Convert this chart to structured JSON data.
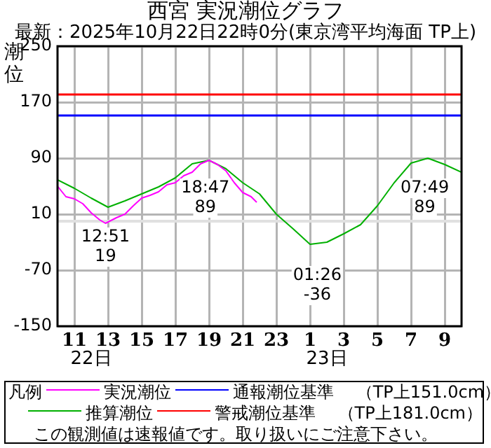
{
  "chart_data": {
    "type": "line",
    "title": "西宮 実況潮位グラフ",
    "subtitle": "最新：2025年10月22日22時0分(東京湾平均海面 TP上)",
    "ylabel": "潮位",
    "legend_title": "凡例",
    "series": [
      {
        "name": "実況潮位",
        "color": "#ff00ff",
        "x": [
          "2025-10-22T10:00",
          "2025-10-22T10:30",
          "2025-10-22T11:00",
          "2025-10-22T11:30",
          "2025-10-22T12:00",
          "2025-10-22T12:30",
          "2025-10-22T12:51",
          "2025-10-22T13:30",
          "2025-10-22T14:00",
          "2025-10-22T14:30",
          "2025-10-22T15:00",
          "2025-10-22T15:30",
          "2025-10-22T16:00",
          "2025-10-22T16:30",
          "2025-10-22T17:00",
          "2025-10-22T17:30",
          "2025-10-22T18:00",
          "2025-10-22T18:30",
          "2025-10-22T19:00",
          "2025-10-22T19:30",
          "2025-10-22T20:00",
          "2025-10-22T20:30",
          "2025-10-22T21:00",
          "2025-10-22T21:30",
          "2025-10-22T21:50"
        ],
        "values": [
          50,
          35,
          32,
          25,
          12,
          2,
          -3,
          5,
          10,
          22,
          33,
          37,
          42,
          52,
          55,
          65,
          70,
          82,
          87,
          81,
          72,
          55,
          41,
          35,
          27
        ]
      },
      {
        "name": "推算潮位",
        "color": "#00b000",
        "x": [
          "2025-10-22T10:00",
          "2025-10-22T11:00",
          "2025-10-22T12:00",
          "2025-10-22T13:00",
          "2025-10-22T14:00",
          "2025-10-22T15:00",
          "2025-10-22T16:00",
          "2025-10-22T17:00",
          "2025-10-22T18:00",
          "2025-10-22T19:00",
          "2025-10-22T20:00",
          "2025-10-22T21:00",
          "2025-10-22T22:00",
          "2025-10-22T23:00",
          "2025-10-23T00:00",
          "2025-10-23T01:00",
          "2025-10-23T02:00",
          "2025-10-23T03:00",
          "2025-10-23T04:00",
          "2025-10-23T05:00",
          "2025-10-23T06:00",
          "2025-10-23T07:00",
          "2025-10-23T08:00",
          "2025-10-23T09:00",
          "2025-10-23T10:00"
        ],
        "values": [
          59,
          47,
          33,
          20,
          29,
          39,
          49,
          62,
          82,
          87,
          75,
          55,
          39,
          10,
          -11,
          -33,
          -30,
          -18,
          -5,
          22,
          55,
          83,
          90,
          81,
          70
        ]
      }
    ],
    "xlim": [
      "2025-10-22T10:00",
      "2025-10-23T10:00"
    ],
    "xticks": [
      {
        "value": "2025-10-22T11:00",
        "label": "11"
      },
      {
        "value": "2025-10-22T13:00",
        "label": "13"
      },
      {
        "value": "2025-10-22T15:00",
        "label": "15"
      },
      {
        "value": "2025-10-22T17:00",
        "label": "17"
      },
      {
        "value": "2025-10-22T19:00",
        "label": "19"
      },
      {
        "value": "2025-10-22T21:00",
        "label": "21"
      },
      {
        "value": "2025-10-22T23:00",
        "label": "23"
      },
      {
        "value": "2025-10-23T01:00",
        "label": "1"
      },
      {
        "value": "2025-10-23T03:00",
        "label": "3"
      },
      {
        "value": "2025-10-23T05:00",
        "label": "5"
      },
      {
        "value": "2025-10-23T07:00",
        "label": "7"
      },
      {
        "value": "2025-10-23T09:00",
        "label": "9"
      }
    ],
    "ylim": [
      -150,
      250
    ],
    "yticks": [
      -150,
      -70,
      10,
      90,
      170,
      250
    ],
    "grid": true,
    "legend": "bottom",
    "marker": "none",
    "line_style": "solid",
    "ref_lines": [
      {
        "axis": "y",
        "value": 151,
        "label": "通報潮位基準　 （TP上151.0cm）",
        "color": "#0000ff"
      },
      {
        "axis": "y",
        "value": 181,
        "label": "警戒潮位基準　 （TP上181.0cm）",
        "color": "#ff0000"
      },
      {
        "axis": "y",
        "value": 0,
        "color": "#e0e0e0"
      }
    ],
    "annotations": [
      {
        "text": "12:51\n19",
        "x": "2025-10-22T12:51",
        "y": 19
      },
      {
        "text": "18:47\n89",
        "x": "2025-10-22T18:47",
        "y": 89
      },
      {
        "text": "01:26\n-36",
        "x": "2025-10-23T01:26",
        "y": -36
      },
      {
        "text": "07:49\n89",
        "x": "2025-10-23T07:49",
        "y": 89
      },
      "22日",
      "23日",
      "この観測値は速報値です。取り扱いにご注意下さい。"
    ]
  }
}
